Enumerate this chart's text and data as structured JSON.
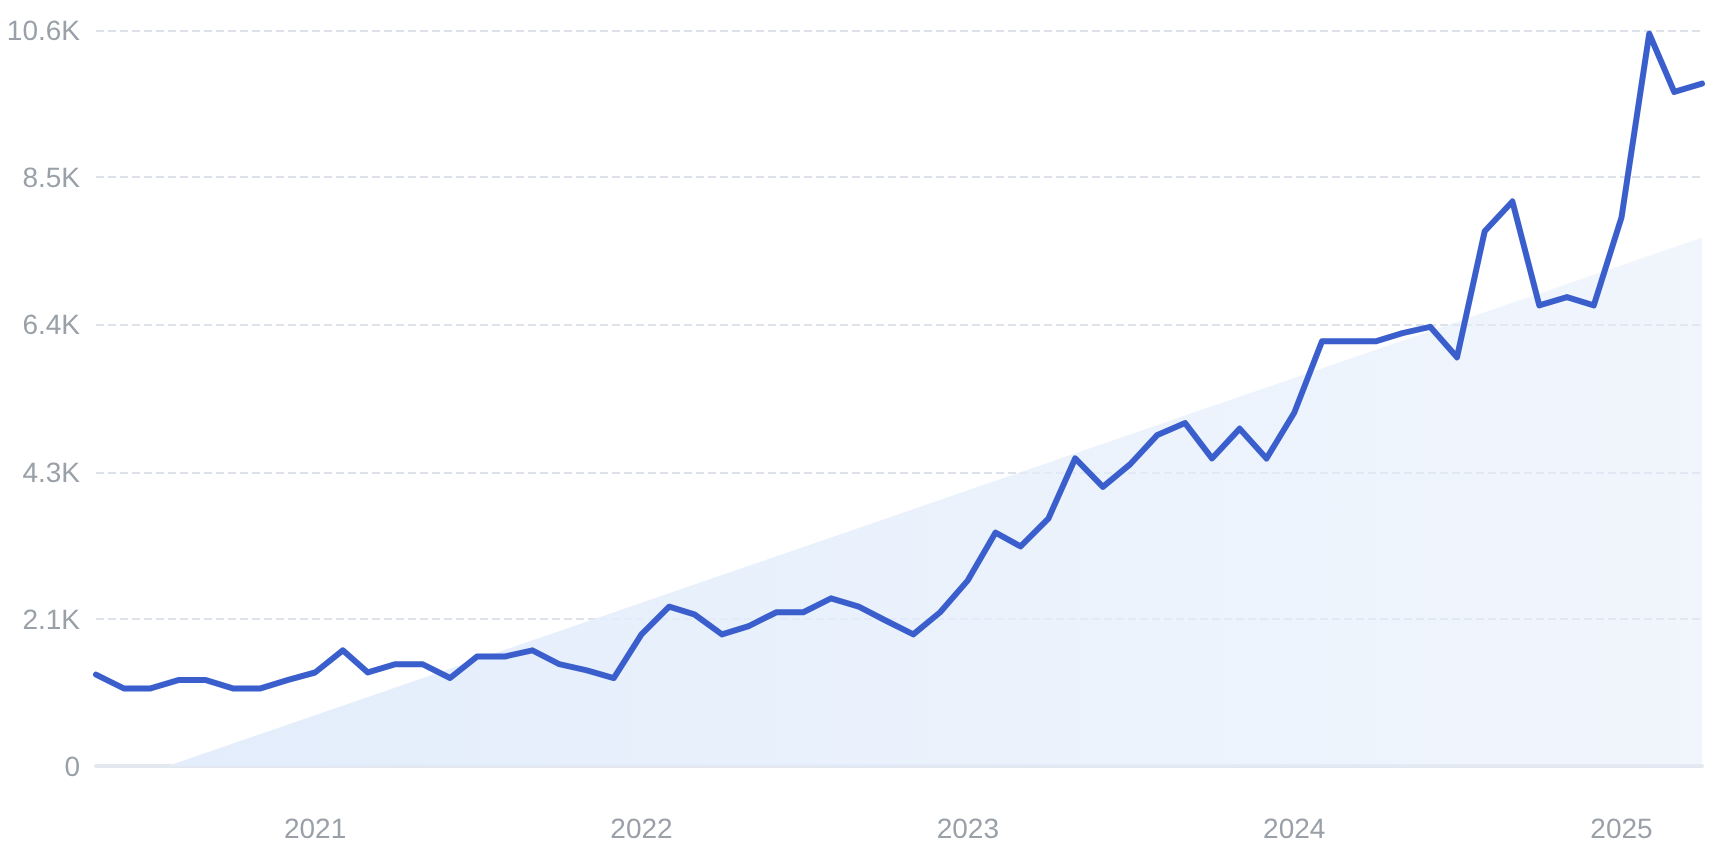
{
  "chart_data": {
    "type": "line",
    "x": [
      "2020-05",
      "2020-06",
      "2020-07",
      "2020-08",
      "2020-09",
      "2020-10",
      "2020-11",
      "2020-12",
      "2021-01",
      "2021-02",
      "2021-03",
      "2021-04",
      "2021-05",
      "2021-06",
      "2021-07",
      "2021-08",
      "2021-09",
      "2021-10",
      "2021-11",
      "2021-12",
      "2022-01",
      "2022-02",
      "2022-03",
      "2022-04",
      "2022-05",
      "2022-06",
      "2022-07",
      "2022-08",
      "2022-09",
      "2022-10",
      "2022-11",
      "2022-12",
      "2023-01",
      "2023-02",
      "2023-03",
      "2023-04",
      "2023-05",
      "2023-06",
      "2023-07",
      "2023-08",
      "2023-09",
      "2023-10",
      "2023-11",
      "2023-12",
      "2024-01",
      "2024-02",
      "2024-03",
      "2024-04",
      "2024-05",
      "2024-06",
      "2024-07",
      "2024-08",
      "2024-09",
      "2024-10",
      "2024-11",
      "2024-12",
      "2025-01",
      "2025-02",
      "2025-03",
      "2025-04"
    ],
    "series": [
      {
        "color": "#3a5fcd",
        "values": [
          1320,
          1120,
          1120,
          1240,
          1240,
          1120,
          1120,
          1240,
          1350,
          1670,
          1350,
          1470,
          1470,
          1270,
          1580,
          1580,
          1670,
          1470,
          1380,
          1270,
          1900,
          2300,
          2190,
          1900,
          2020,
          2220,
          2220,
          2420,
          2300,
          2100,
          1900,
          2220,
          2680,
          3370,
          3170,
          3570,
          4440,
          4030,
          4350,
          4780,
          4950,
          4440,
          4870,
          4440,
          5100,
          6130,
          6130,
          6130,
          6250,
          6340,
          5900,
          7720,
          8150,
          6650,
          6770,
          6650,
          7920,
          10570,
          9730,
          9850
        ]
      },
      {
        "type": "area",
        "color": "#e3edfb",
        "x": [
          "2020-07-20",
          "2025-04"
        ],
        "values": [
          0,
          7630
        ]
      }
    ],
    "xlim": [
      "2020-05",
      "2025-04"
    ],
    "xticks": [
      "2021",
      "2022",
      "2023",
      "2024",
      "2025"
    ],
    "ylim": [
      0,
      10625
    ],
    "yticks": [
      0,
      {
        "value": 2125,
        "label": "2.1K"
      },
      {
        "value": 4250,
        "label": "4.3K"
      },
      {
        "value": 6375,
        "label": "6.4K"
      },
      {
        "value": 8500,
        "label": "8.5K"
      },
      {
        "value": 10625,
        "label": "10.6K"
      }
    ],
    "grid": "y",
    "marker": "none",
    "line_style": "solid"
  }
}
